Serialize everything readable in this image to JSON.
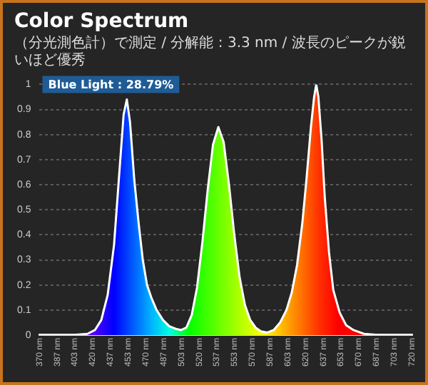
{
  "chart_data": {
    "type": "area",
    "title": "Color Spectrum",
    "subtitle": "（分光測色計）で測定 / 分解能 : 3.3 nm / 波長のピークが鋭いほど優秀",
    "annotations": [
      "Blue Light : 28.79%"
    ],
    "x": [
      370,
      400,
      415,
      422,
      428,
      434,
      440,
      445,
      449,
      452,
      455,
      459,
      463,
      467,
      471,
      475,
      480,
      486,
      492,
      498,
      503,
      508,
      513,
      518,
      523,
      528,
      533,
      538,
      543,
      548,
      553,
      558,
      563,
      568,
      573,
      578,
      584,
      590,
      596,
      602,
      607,
      612,
      617,
      621,
      625,
      628,
      630,
      632,
      635,
      638,
      642,
      646,
      652,
      658,
      665,
      675,
      690,
      720
    ],
    "series": [
      {
        "color": "#ffffff",
        "values": [
          0,
          0,
          0.005,
          0.02,
          0.06,
          0.16,
          0.36,
          0.65,
          0.88,
          0.94,
          0.85,
          0.62,
          0.45,
          0.3,
          0.2,
          0.15,
          0.1,
          0.06,
          0.035,
          0.025,
          0.02,
          0.03,
          0.08,
          0.19,
          0.37,
          0.58,
          0.76,
          0.83,
          0.77,
          0.6,
          0.4,
          0.23,
          0.12,
          0.06,
          0.03,
          0.015,
          0.01,
          0.02,
          0.05,
          0.1,
          0.17,
          0.28,
          0.45,
          0.63,
          0.83,
          0.95,
          1,
          0.95,
          0.78,
          0.55,
          0.33,
          0.18,
          0.09,
          0.04,
          0.02,
          0.005,
          0,
          0
        ]
      }
    ],
    "xlim": [
      370,
      720
    ],
    "xticks": [
      {
        "value": 370,
        "label": "370 nm"
      },
      {
        "value": 386.67,
        "label": "387 nm"
      },
      {
        "value": 403.33,
        "label": "403 nm"
      },
      {
        "value": 420,
        "label": "420 nm"
      },
      {
        "value": 436.67,
        "label": "437 nm"
      },
      {
        "value": 453.33,
        "label": "453 nm"
      },
      {
        "value": 470,
        "label": "470 nm"
      },
      {
        "value": 486.67,
        "label": "487 nm"
      },
      {
        "value": 503.33,
        "label": "503 nm"
      },
      {
        "value": 520,
        "label": "520 nm"
      },
      {
        "value": 536.67,
        "label": "537 nm"
      },
      {
        "value": 553.33,
        "label": "553 nm"
      },
      {
        "value": 570,
        "label": "570 nm"
      },
      {
        "value": 586.67,
        "label": "587 nm"
      },
      {
        "value": 603.33,
        "label": "603 nm"
      },
      {
        "value": 620,
        "label": "620 nm"
      },
      {
        "value": 636.67,
        "label": "637 nm"
      },
      {
        "value": 653.33,
        "label": "653 nm"
      },
      {
        "value": 670,
        "label": "670 nm"
      },
      {
        "value": 686.67,
        "label": "687 nm"
      },
      {
        "value": 703.33,
        "label": "703 nm"
      },
      {
        "value": 720,
        "label": "720 nm"
      }
    ],
    "ylim": [
      0,
      1
    ],
    "yticks": [
      0,
      0.1,
      0.2,
      0.3,
      0.4,
      0.5,
      0.6,
      0.7,
      0.8,
      0.9,
      1
    ],
    "grid": "y",
    "legend": false,
    "marker": "none",
    "line_style": "solid"
  }
}
